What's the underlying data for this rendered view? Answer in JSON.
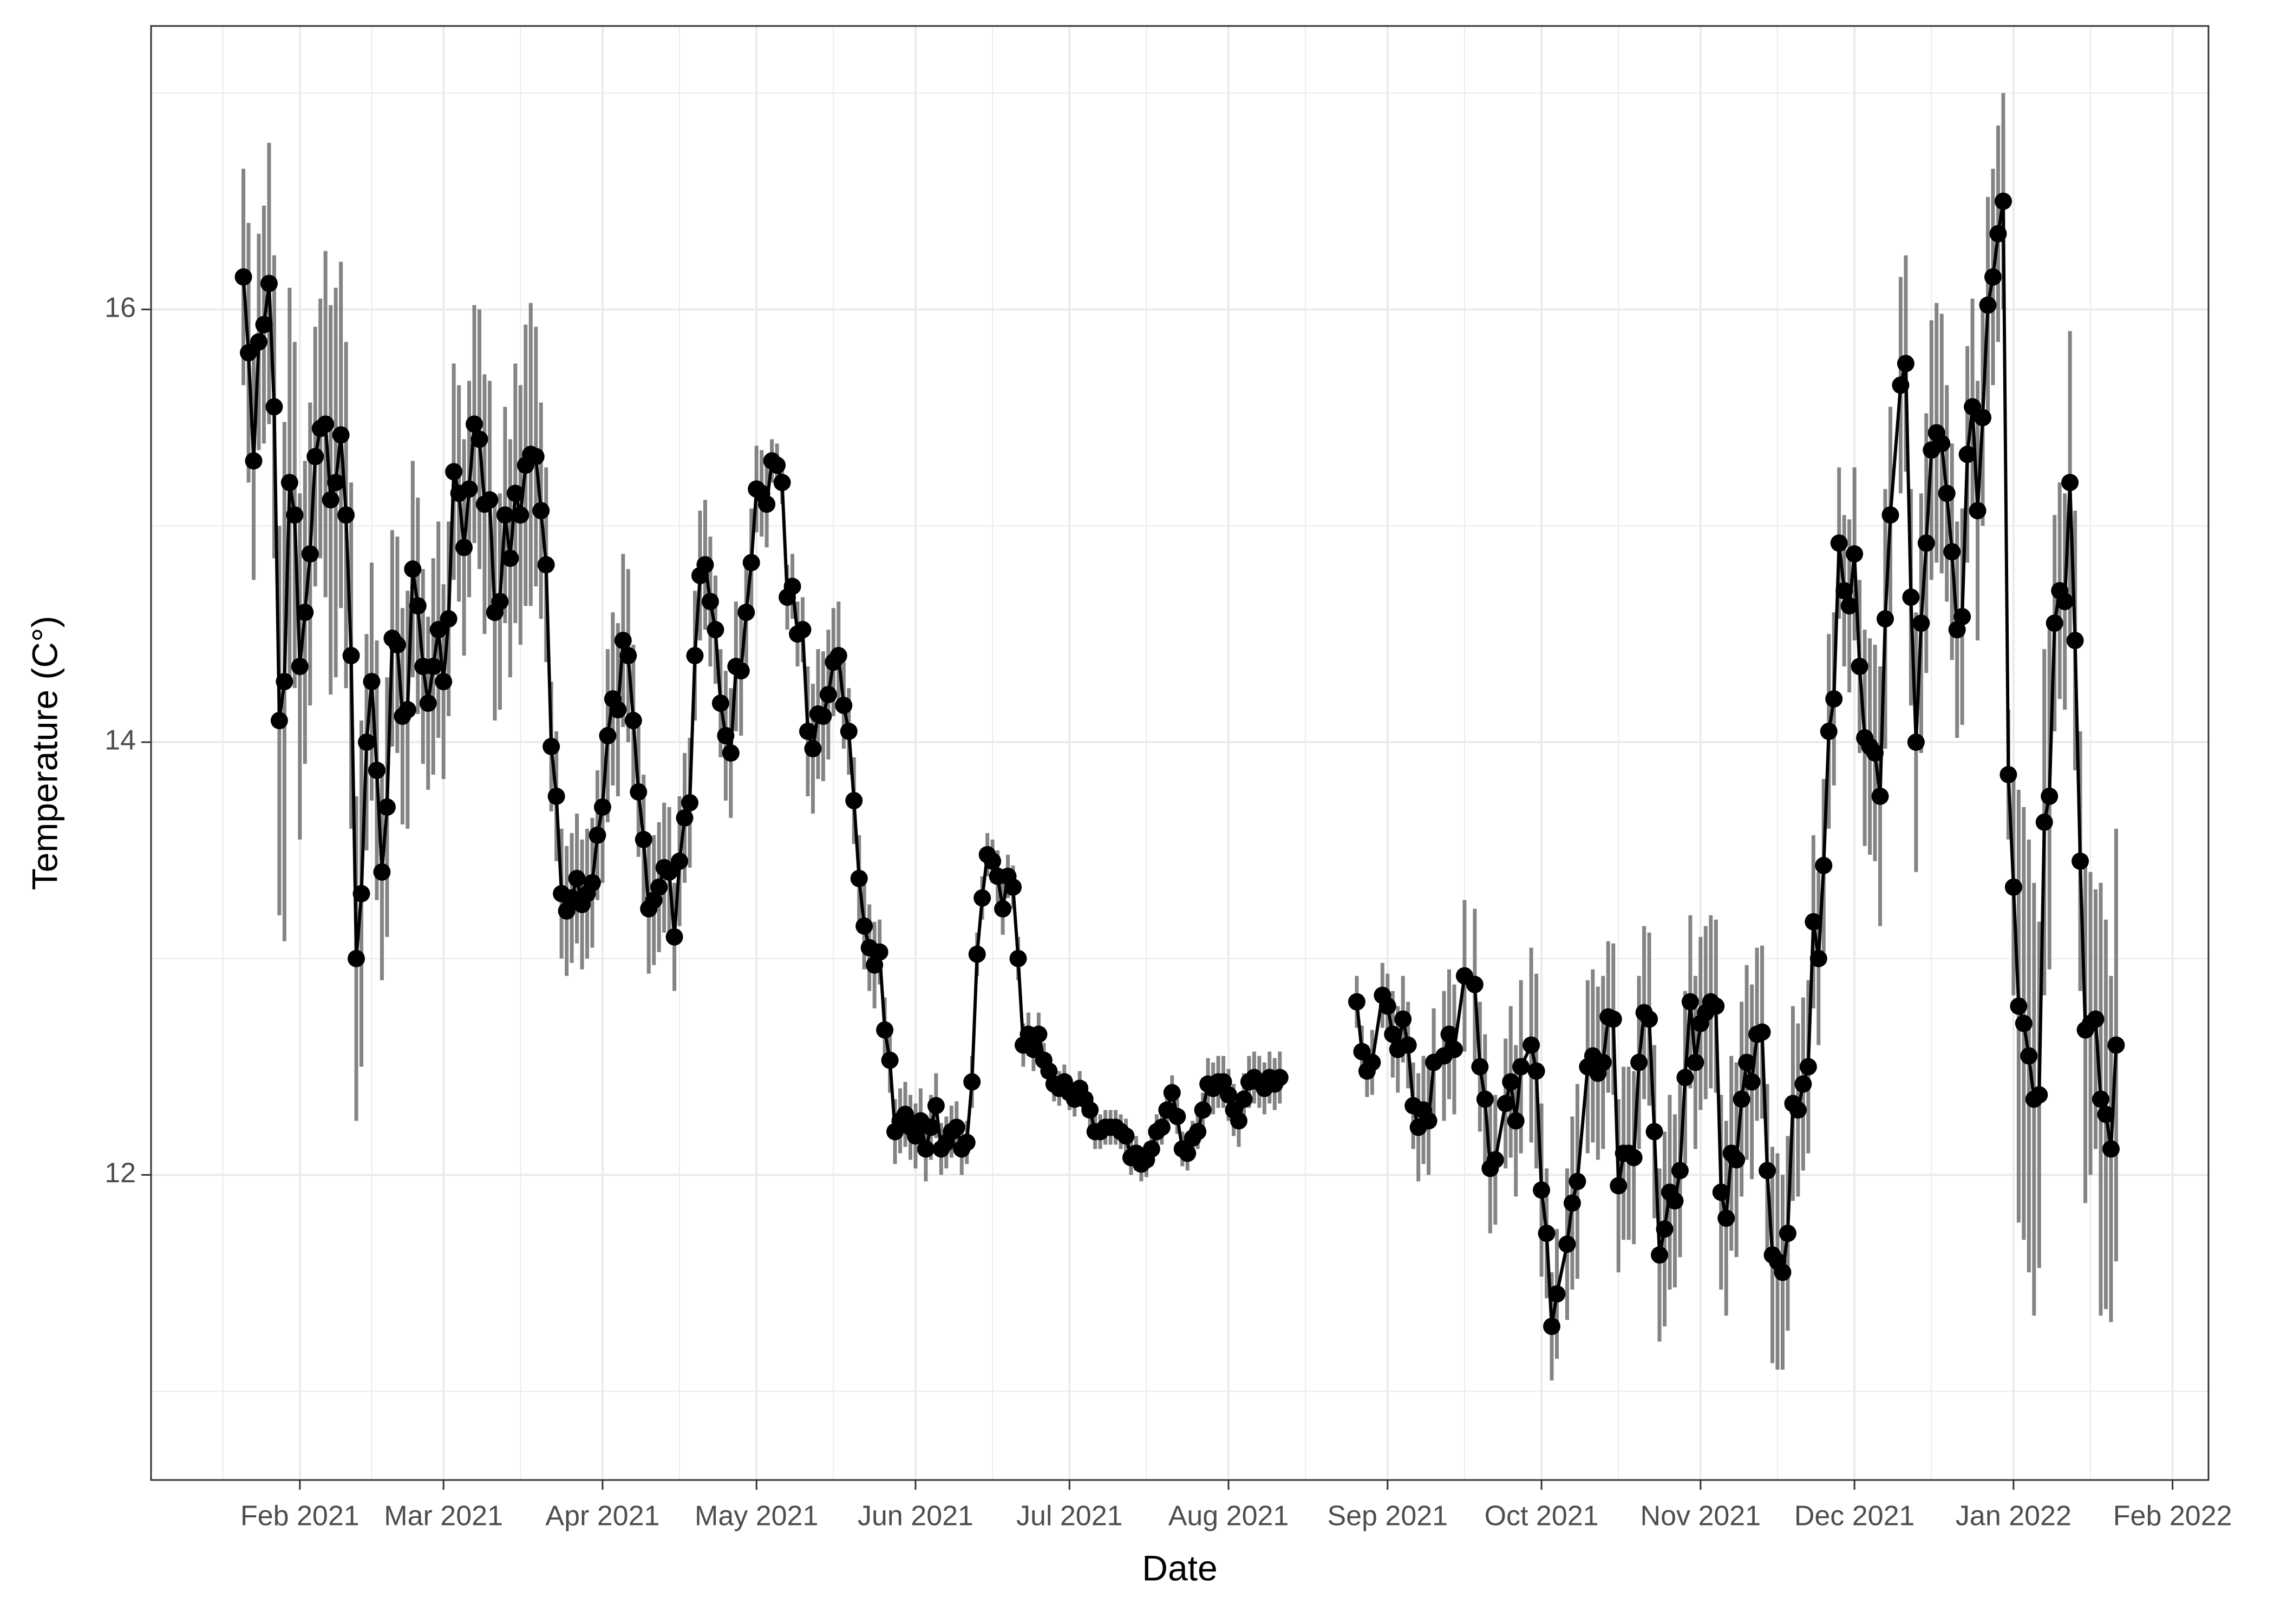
{
  "chart_data": {
    "type": "line",
    "x_label": "Date",
    "y_label": "Temperature (C°)",
    "color": "#000000",
    "error_color": "#6e6e6e",
    "grid": true,
    "xlim": [
      "2021-01-03",
      "2022-02-08"
    ],
    "xticks": [
      {
        "value": "2021-02-01",
        "label": "Feb 2021"
      },
      {
        "value": "2021-03-01",
        "label": "Mar 2021"
      },
      {
        "value": "2021-04-01",
        "label": "Apr 2021"
      },
      {
        "value": "2021-05-01",
        "label": "May 2021"
      },
      {
        "value": "2021-06-01",
        "label": "Jun 2021"
      },
      {
        "value": "2021-07-01",
        "label": "Jul 2021"
      },
      {
        "value": "2021-08-01",
        "label": "Aug 2021"
      },
      {
        "value": "2021-09-01",
        "label": "Sep 2021"
      },
      {
        "value": "2021-10-01",
        "label": "Oct 2021"
      },
      {
        "value": "2021-11-01",
        "label": "Nov 2021"
      },
      {
        "value": "2021-12-01",
        "label": "Dec 2021"
      },
      {
        "value": "2022-01-01",
        "label": "Jan 2022"
      },
      {
        "value": "2022-02-01",
        "label": "Feb 2022"
      }
    ],
    "xminor": [
      "2021-01-17",
      "2021-02-15",
      "2021-03-16",
      "2021-04-16",
      "2021-05-16",
      "2021-06-16",
      "2021-07-16",
      "2021-08-16",
      "2021-09-16",
      "2021-10-16",
      "2021-11-16",
      "2021-12-16",
      "2022-01-16"
    ],
    "ylim": [
      10.59,
      17.31
    ],
    "yticks": [
      12,
      14,
      16
    ],
    "yminor": [
      11,
      13,
      15,
      17
    ],
    "x": [
      "2021-01-21",
      "2021-01-22",
      "2021-01-23",
      "2021-01-24",
      "2021-01-25",
      "2021-01-26",
      "2021-01-27",
      "2021-01-28",
      "2021-01-29",
      "2021-01-30",
      "2021-01-31",
      "2021-02-01",
      "2021-02-02",
      "2021-02-03",
      "2021-02-04",
      "2021-02-05",
      "2021-02-06",
      "2021-02-07",
      "2021-02-08",
      "2021-02-09",
      "2021-02-10",
      "2021-02-11",
      "2021-02-12",
      "2021-02-13",
      "2021-02-14",
      "2021-02-15",
      "2021-02-16",
      "2021-02-17",
      "2021-02-18",
      "2021-02-19",
      "2021-02-20",
      "2021-02-21",
      "2021-02-22",
      "2021-02-23",
      "2021-02-24",
      "2021-02-25",
      "2021-02-26",
      "2021-02-27",
      "2021-02-28",
      "2021-03-01",
      "2021-03-02",
      "2021-03-03",
      "2021-03-04",
      "2021-03-05",
      "2021-03-06",
      "2021-03-07",
      "2021-03-08",
      "2021-03-09",
      "2021-03-10",
      "2021-03-11",
      "2021-03-12",
      "2021-03-13",
      "2021-03-14",
      "2021-03-15",
      "2021-03-16",
      "2021-03-17",
      "2021-03-18",
      "2021-03-19",
      "2021-03-20",
      "2021-03-21",
      "2021-03-22",
      "2021-03-23",
      "2021-03-24",
      "2021-03-25",
      "2021-03-26",
      "2021-03-27",
      "2021-03-28",
      "2021-03-29",
      "2021-03-30",
      "2021-03-31",
      "2021-04-01",
      "2021-04-02",
      "2021-04-03",
      "2021-04-04",
      "2021-04-05",
      "2021-04-06",
      "2021-04-07",
      "2021-04-08",
      "2021-04-09",
      "2021-04-10",
      "2021-04-11",
      "2021-04-12",
      "2021-04-13",
      "2021-04-14",
      "2021-04-15",
      "2021-04-16",
      "2021-04-17",
      "2021-04-18",
      "2021-04-19",
      "2021-04-20",
      "2021-04-21",
      "2021-04-22",
      "2021-04-23",
      "2021-04-24",
      "2021-04-25",
      "2021-04-26",
      "2021-04-27",
      "2021-04-28",
      "2021-04-29",
      "2021-04-30",
      "2021-05-01",
      "2021-05-02",
      "2021-05-03",
      "2021-05-04",
      "2021-05-05",
      "2021-05-06",
      "2021-05-07",
      "2021-05-08",
      "2021-05-09",
      "2021-05-10",
      "2021-05-11",
      "2021-05-12",
      "2021-05-13",
      "2021-05-14",
      "2021-05-15",
      "2021-05-16",
      "2021-05-17",
      "2021-05-18",
      "2021-05-19",
      "2021-05-20",
      "2021-05-21",
      "2021-05-22",
      "2021-05-23",
      "2021-05-24",
      "2021-05-25",
      "2021-05-26",
      "2021-05-27",
      "2021-05-28",
      "2021-05-29",
      "2021-05-30",
      "2021-05-31",
      "2021-06-01",
      "2021-06-02",
      "2021-06-03",
      "2021-06-04",
      "2021-06-05",
      "2021-06-06",
      "2021-06-07",
      "2021-06-08",
      "2021-06-09",
      "2021-06-10",
      "2021-06-11",
      "2021-06-12",
      "2021-06-13",
      "2021-06-14",
      "2021-06-15",
      "2021-06-16",
      "2021-06-17",
      "2021-06-18",
      "2021-06-19",
      "2021-06-20",
      "2021-06-21",
      "2021-06-22",
      "2021-06-23",
      "2021-06-24",
      "2021-06-25",
      "2021-06-26",
      "2021-06-27",
      "2021-06-28",
      "2021-06-29",
      "2021-06-30",
      "2021-07-01",
      "2021-07-02",
      "2021-07-03",
      "2021-07-04",
      "2021-07-05",
      "2021-07-06",
      "2021-07-07",
      "2021-07-08",
      "2021-07-09",
      "2021-07-10",
      "2021-07-11",
      "2021-07-12",
      "2021-07-13",
      "2021-07-14",
      "2021-07-15",
      "2021-07-16",
      "2021-07-17",
      "2021-07-18",
      "2021-07-19",
      "2021-07-20",
      "2021-07-21",
      "2021-07-22",
      "2021-07-23",
      "2021-07-24",
      "2021-07-25",
      "2021-07-26",
      "2021-07-27",
      "2021-07-28",
      "2021-07-29",
      "2021-07-30",
      "2021-07-31",
      "2021-08-01",
      "2021-08-02",
      "2021-08-03",
      "2021-08-04",
      "2021-08-05",
      "2021-08-06",
      "2021-08-07",
      "2021-08-08",
      "2021-08-09",
      "2021-08-10",
      "2021-08-11",
      "2021-08-12",
      "2021-08-26",
      "2021-08-27",
      "2021-08-28",
      "2021-08-29",
      "2021-08-31",
      "2021-09-01",
      "2021-09-02",
      "2021-09-03",
      "2021-09-04",
      "2021-09-05",
      "2021-09-06",
      "2021-09-07",
      "2021-09-08",
      "2021-09-09",
      "2021-09-10",
      "2021-09-12",
      "2021-09-13",
      "2021-09-14",
      "2021-09-16",
      "2021-09-18",
      "2021-09-19",
      "2021-09-20",
      "2021-09-21",
      "2021-09-22",
      "2021-09-24",
      "2021-09-25",
      "2021-09-26",
      "2021-09-27",
      "2021-09-29",
      "2021-09-30",
      "2021-10-01",
      "2021-10-02",
      "2021-10-03",
      "2021-10-04",
      "2021-10-06",
      "2021-10-07",
      "2021-10-08",
      "2021-10-10",
      "2021-10-11",
      "2021-10-12",
      "2021-10-13",
      "2021-10-14",
      "2021-10-15",
      "2021-10-16",
      "2021-10-17",
      "2021-10-18",
      "2021-10-19",
      "2021-10-20",
      "2021-10-21",
      "2021-10-22",
      "2021-10-23",
      "2021-10-24",
      "2021-10-25",
      "2021-10-26",
      "2021-10-27",
      "2021-10-28",
      "2021-10-29",
      "2021-10-30",
      "2021-10-31",
      "2021-11-01",
      "2021-11-02",
      "2021-11-03",
      "2021-11-04",
      "2021-11-05",
      "2021-11-06",
      "2021-11-07",
      "2021-11-08",
      "2021-11-09",
      "2021-11-10",
      "2021-11-11",
      "2021-11-12",
      "2021-11-13",
      "2021-11-14",
      "2021-11-15",
      "2021-11-16",
      "2021-11-17",
      "2021-11-18",
      "2021-11-19",
      "2021-11-20",
      "2021-11-21",
      "2021-11-22",
      "2021-11-23",
      "2021-11-24",
      "2021-11-25",
      "2021-11-26",
      "2021-11-27",
      "2021-11-28",
      "2021-11-29",
      "2021-11-30",
      "2021-12-01",
      "2021-12-02",
      "2021-12-03",
      "2021-12-04",
      "2021-12-05",
      "2021-12-06",
      "2021-12-07",
      "2021-12-08",
      "2021-12-10",
      "2021-12-11",
      "2021-12-12",
      "2021-12-13",
      "2021-12-14",
      "2021-12-15",
      "2021-12-16",
      "2021-12-17",
      "2021-12-18",
      "2021-12-19",
      "2021-12-20",
      "2021-12-21",
      "2021-12-22",
      "2021-12-23",
      "2021-12-24",
      "2021-12-25",
      "2021-12-26",
      "2021-12-27",
      "2021-12-28",
      "2021-12-29",
      "2021-12-30",
      "2021-12-31",
      "2022-01-01",
      "2022-01-02",
      "2022-01-03",
      "2022-01-04",
      "2022-01-05",
      "2022-01-06",
      "2022-01-07",
      "2022-01-08",
      "2022-01-09",
      "2022-01-10",
      "2022-01-11",
      "2022-01-12",
      "2022-01-13",
      "2022-01-14",
      "2022-01-15",
      "2022-01-16",
      "2022-01-17",
      "2022-01-18",
      "2022-01-19",
      "2022-01-20",
      "2022-01-21"
    ],
    "values": [
      16.15,
      15.8,
      15.3,
      15.85,
      15.93,
      16.12,
      15.55,
      14.1,
      14.28,
      15.2,
      15.05,
      14.35,
      14.6,
      14.87,
      15.32,
      15.45,
      15.47,
      15.12,
      15.2,
      15.42,
      15.05,
      14.4,
      13.0,
      13.3,
      14.0,
      14.28,
      13.87,
      13.4,
      13.7,
      14.48,
      14.45,
      14.12,
      14.15,
      14.8,
      14.63,
      14.35,
      14.18,
      14.35,
      14.52,
      14.28,
      14.57,
      15.25,
      15.15,
      14.9,
      15.17,
      15.47,
      15.4,
      15.1,
      15.12,
      14.6,
      14.65,
      15.05,
      14.85,
      15.15,
      15.05,
      15.28,
      15.33,
      15.32,
      15.07,
      14.82,
      13.98,
      13.75,
      13.3,
      13.22,
      13.28,
      13.37,
      13.25,
      13.3,
      13.35,
      13.57,
      13.7,
      14.03,
      14.2,
      14.15,
      14.47,
      14.4,
      14.1,
      13.77,
      13.55,
      13.23,
      13.27,
      13.33,
      13.42,
      13.4,
      13.1,
      13.45,
      13.65,
      13.72,
      14.4,
      14.77,
      14.82,
      14.65,
      14.52,
      14.18,
      14.03,
      13.95,
      14.35,
      14.33,
      14.6,
      14.83,
      15.17,
      15.15,
      15.1,
      15.3,
      15.28,
      15.2,
      14.67,
      14.72,
      14.5,
      14.52,
      14.05,
      13.97,
      14.13,
      14.12,
      14.22,
      14.37,
      14.4,
      14.17,
      14.05,
      13.73,
      13.37,
      13.15,
      13.05,
      12.97,
      13.03,
      12.67,
      12.53,
      12.2,
      12.25,
      12.28,
      12.22,
      12.18,
      12.25,
      12.12,
      12.22,
      12.32,
      12.12,
      12.15,
      12.2,
      12.22,
      12.12,
      12.15,
      12.43,
      13.02,
      13.28,
      13.48,
      13.45,
      13.38,
      13.23,
      13.38,
      13.33,
      13.0,
      12.6,
      12.65,
      12.58,
      12.65,
      12.53,
      12.48,
      12.42,
      12.4,
      12.43,
      12.38,
      12.35,
      12.4,
      12.35,
      12.3,
      12.2,
      12.2,
      12.22,
      12.22,
      12.22,
      12.2,
      12.18,
      12.08,
      12.1,
      12.05,
      12.07,
      12.12,
      12.2,
      12.22,
      12.3,
      12.38,
      12.27,
      12.12,
      12.1,
      12.17,
      12.2,
      12.3,
      12.42,
      12.4,
      12.43,
      12.43,
      12.37,
      12.3,
      12.25,
      12.35,
      12.43,
      12.45,
      12.43,
      12.4,
      12.45,
      12.42,
      12.45,
      null,
      12.8,
      12.57,
      12.48,
      12.52,
      12.83,
      12.78,
      12.65,
      12.58,
      12.72,
      12.6,
      12.32,
      12.22,
      12.3,
      12.25,
      12.52,
      12.55,
      12.65,
      12.58,
      12.92,
      12.88,
      12.5,
      12.35,
      12.03,
      12.07,
      12.33,
      12.43,
      12.25,
      12.5,
      12.6,
      12.48,
      11.93,
      11.73,
      11.3,
      11.45,
      11.68,
      11.87,
      11.97,
      12.5,
      12.55,
      12.47,
      12.52,
      12.73,
      12.72,
      11.95,
      12.1,
      12.1,
      12.08,
      12.52,
      12.75,
      12.72,
      12.2,
      11.63,
      11.75,
      11.92,
      11.88,
      12.02,
      12.45,
      12.8,
      12.52,
      12.7,
      12.75,
      12.8,
      12.78,
      11.92,
      11.8,
      12.1,
      12.07,
      12.35,
      12.52,
      12.43,
      12.65,
      12.66,
      12.02,
      11.63,
      11.6,
      11.55,
      11.73,
      12.33,
      12.3,
      12.42,
      12.5,
      13.17,
      13.0,
      13.43,
      14.05,
      14.2,
      14.92,
      14.7,
      14.63,
      14.87,
      14.35,
      14.02,
      13.98,
      13.95,
      13.75,
      14.57,
      15.05,
      15.65,
      15.75,
      14.67,
      14.0,
      14.55,
      14.92,
      15.35,
      15.43,
      15.38,
      15.15,
      14.88,
      14.52,
      14.58,
      15.33,
      15.55,
      15.07,
      15.5,
      16.02,
      16.15,
      16.35,
      16.5,
      13.85,
      13.33,
      12.78,
      12.7,
      12.55,
      12.35,
      12.37,
      13.63,
      13.75,
      14.55,
      14.7,
      14.65,
      15.2,
      14.47,
      13.45,
      12.67,
      12.7,
      12.72,
      12.35,
      12.28,
      12.12,
      12.6
    ],
    "errors": [
      0.5,
      0.6,
      0.55,
      0.5,
      0.55,
      0.65,
      0.7,
      0.9,
      1.2,
      0.9,
      0.8,
      0.8,
      0.7,
      0.7,
      0.6,
      0.6,
      0.8,
      0.9,
      0.9,
      0.8,
      0.8,
      0.8,
      0.75,
      0.8,
      0.5,
      0.55,
      0.6,
      0.5,
      0.6,
      0.5,
      0.5,
      0.5,
      0.55,
      0.5,
      0.5,
      0.45,
      0.4,
      0.5,
      0.5,
      0.45,
      0.45,
      0.5,
      0.5,
      0.5,
      0.5,
      0.55,
      0.6,
      0.6,
      0.55,
      0.5,
      0.5,
      0.5,
      0.55,
      0.6,
      0.6,
      0.65,
      0.7,
      0.6,
      0.5,
      0.45,
      0.3,
      0.3,
      0.3,
      0.3,
      0.3,
      0.3,
      0.3,
      0.3,
      0.3,
      0.3,
      0.35,
      0.4,
      0.4,
      0.4,
      0.4,
      0.4,
      0.35,
      0.3,
      0.3,
      0.3,
      0.3,
      0.3,
      0.3,
      0.3,
      0.25,
      0.3,
      0.3,
      0.3,
      0.3,
      0.3,
      0.3,
      0.3,
      0.25,
      0.25,
      0.3,
      0.3,
      0.3,
      0.3,
      0.25,
      0.25,
      0.2,
      0.2,
      0.2,
      0.1,
      0.1,
      0.1,
      0.15,
      0.15,
      0.15,
      0.15,
      0.3,
      0.3,
      0.3,
      0.3,
      0.3,
      0.25,
      0.25,
      0.2,
      0.2,
      0.2,
      0.2,
      0.2,
      0.2,
      0.2,
      0.15,
      0.15,
      0.15,
      0.15,
      0.15,
      0.15,
      0.15,
      0.15,
      0.15,
      0.15,
      0.15,
      0.15,
      0.12,
      0.12,
      0.12,
      0.12,
      0.12,
      0.1,
      0.12,
      0.1,
      0.1,
      0.1,
      0.1,
      0.12,
      0.12,
      0.1,
      0.1,
      0.1,
      0.1,
      0.1,
      0.1,
      0.1,
      0.08,
      0.08,
      0.08,
      0.08,
      0.08,
      0.08,
      0.08,
      0.08,
      0.08,
      0.08,
      0.08,
      0.08,
      0.08,
      0.08,
      0.08,
      0.08,
      0.08,
      0.08,
      0.08,
      0.08,
      0.08,
      0.08,
      0.08,
      0.08,
      0.08,
      0.08,
      0.08,
      0.08,
      0.08,
      0.08,
      0.08,
      0.08,
      0.12,
      0.12,
      0.12,
      0.12,
      0.12,
      0.12,
      0.12,
      0.12,
      0.12,
      0.12,
      0.12,
      0.12,
      0.12,
      0.12,
      0.12,
      null,
      0.12,
      0.12,
      0.12,
      0.15,
      0.15,
      0.15,
      0.2,
      0.2,
      0.2,
      0.2,
      0.2,
      0.25,
      0.25,
      0.25,
      0.25,
      0.3,
      0.3,
      0.3,
      0.35,
      0.35,
      0.3,
      0.3,
      0.3,
      0.3,
      0.3,
      0.35,
      0.35,
      0.4,
      0.45,
      0.45,
      0.4,
      0.3,
      0.25,
      0.3,
      0.35,
      0.4,
      0.45,
      0.4,
      0.4,
      0.4,
      0.4,
      0.35,
      0.35,
      0.4,
      0.4,
      0.4,
      0.4,
      0.4,
      0.4,
      0.4,
      0.4,
      0.4,
      0.45,
      0.45,
      0.4,
      0.4,
      0.4,
      0.4,
      0.4,
      0.4,
      0.4,
      0.4,
      0.4,
      0.45,
      0.45,
      0.45,
      0.45,
      0.45,
      0.45,
      0.45,
      0.4,
      0.4,
      0.4,
      0.5,
      0.5,
      0.45,
      0.45,
      0.45,
      0.4,
      0.4,
      0.4,
      0.4,
      0.4,
      0.4,
      0.45,
      0.4,
      0.35,
      0.35,
      0.4,
      0.4,
      0.4,
      0.5,
      0.5,
      0.5,
      0.6,
      0.6,
      0.5,
      0.5,
      0.5,
      0.5,
      0.6,
      0.6,
      0.6,
      0.6,
      0.6,
      0.6,
      0.5,
      0.5,
      0.5,
      0.5,
      0.5,
      0.5,
      0.6,
      0.5,
      0.5,
      0.5,
      0.5,
      0.5,
      0.3,
      0.5,
      1.0,
      1.0,
      1.0,
      1.0,
      0.8,
      0.8,
      0.8,
      0.5,
      0.5,
      0.5,
      0.7,
      0.6,
      0.6,
      0.8,
      0.7,
      0.6,
      1.0,
      0.9,
      0.8,
      1.0
    ]
  }
}
